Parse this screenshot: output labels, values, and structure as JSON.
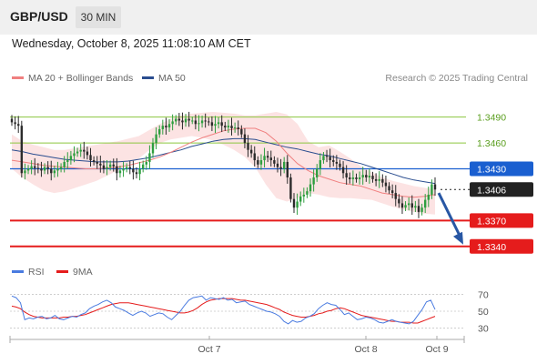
{
  "header": {
    "pair": "GBP/USD",
    "timeframe": "30 MIN"
  },
  "datetime": "Wednesday, October 8, 2025 11:08:10 AM CET",
  "legend": {
    "ma20": "MA 20 + Bollinger Bands",
    "ma50": "MA 50"
  },
  "credit": "Research © 2025 Trading Central",
  "rsi_legend": {
    "rsi": "RSI",
    "ma": "9MA"
  },
  "colors": {
    "ma20": "#f08080",
    "ma50": "#2a4d8f",
    "bull": "#2e9e3f",
    "bear": "#2b2b2b",
    "resistance": "#8cc63f",
    "pivot": "#1a5fd0",
    "support": "#e51c1c",
    "current": "#222222",
    "rsi": "#4a7be0",
    "rsi_ma": "#e51c1c"
  },
  "chart_data": [
    {
      "type": "candlestick",
      "instrument": "GBP/USD",
      "timeframe": "30 MIN",
      "ylim": [
        1.3325,
        1.3515
      ],
      "xlabels": [
        "Oct 7",
        "Oct 8",
        "Oct 9"
      ],
      "levels": [
        {
          "name": "resistance-2",
          "value": 1.349,
          "label": "1.3490",
          "kind": "resistance"
        },
        {
          "name": "resistance-1",
          "value": 1.346,
          "label": "1.3460",
          "kind": "resistance"
        },
        {
          "name": "pivot",
          "value": 1.343,
          "label": "1.3430",
          "kind": "pivot"
        },
        {
          "name": "current",
          "value": 1.3406,
          "label": "1.3406",
          "kind": "current"
        },
        {
          "name": "support-1",
          "value": 1.337,
          "label": "1.3370",
          "kind": "support"
        },
        {
          "name": "support-2",
          "value": 1.334,
          "label": "1.3340",
          "kind": "support"
        }
      ],
      "closes": [
        1.3484,
        1.3482,
        1.348,
        1.3425,
        1.3428,
        1.343,
        1.3433,
        1.3431,
        1.343,
        1.3428,
        1.3432,
        1.343,
        1.3425,
        1.3428,
        1.343,
        1.3432,
        1.3438,
        1.344,
        1.3445,
        1.3448,
        1.345,
        1.3452,
        1.345,
        1.3446,
        1.344,
        1.3438,
        1.3436,
        1.3434,
        1.343,
        1.3432,
        1.3435,
        1.3433,
        1.3425,
        1.3428,
        1.343,
        1.3432,
        1.343,
        1.3426,
        1.3424,
        1.343,
        1.3435,
        1.3438,
        1.3448,
        1.346,
        1.347,
        1.3476,
        1.348,
        1.3478,
        1.3482,
        1.3485,
        1.3488,
        1.3486,
        1.3484,
        1.3488,
        1.3486,
        1.3486,
        1.3482,
        1.3483,
        1.3486,
        1.3485,
        1.3484,
        1.348,
        1.3482,
        1.3484,
        1.348,
        1.3478,
        1.348,
        1.3477,
        1.3478,
        1.3476,
        1.347,
        1.346,
        1.3452,
        1.3448,
        1.344,
        1.3435,
        1.344,
        1.3445,
        1.3443,
        1.344,
        1.3436,
        1.3432,
        1.343,
        1.3438,
        1.342,
        1.3395,
        1.3385,
        1.3392,
        1.3398,
        1.34,
        1.3404,
        1.3412,
        1.342,
        1.343,
        1.344,
        1.3445,
        1.3444,
        1.344,
        1.3438,
        1.3436,
        1.3432,
        1.3425,
        1.342,
        1.3418,
        1.342,
        1.3418,
        1.342,
        1.3423,
        1.342,
        1.3422,
        1.3418,
        1.3416,
        1.3418,
        1.3414,
        1.341,
        1.3405,
        1.3402,
        1.3395,
        1.339,
        1.3385,
        1.3388,
        1.339,
        1.3385,
        1.3387,
        1.338,
        1.3385,
        1.3394,
        1.34,
        1.3412,
        1.3406
      ],
      "ma20": [
        1.344,
        1.3438,
        1.3436,
        1.3434,
        1.3433,
        1.3432,
        1.3431,
        1.343,
        1.343,
        1.3431,
        1.3432,
        1.3434,
        1.3437,
        1.344,
        1.3444,
        1.3449,
        1.3455,
        1.3461,
        1.3466,
        1.347,
        1.3474,
        1.3476,
        1.3477,
        1.3477,
        1.3472,
        1.3462,
        1.3448,
        1.3436,
        1.3428,
        1.3422,
        1.3418,
        1.3414,
        1.3412,
        1.341,
        1.3406,
        1.3402,
        1.34,
        1.3398,
        1.3397,
        1.3398,
        1.34
      ],
      "ma50": [
        1.3452,
        1.345,
        1.3447,
        1.3445,
        1.3443,
        1.3441,
        1.344,
        1.3439,
        1.3438,
        1.3438,
        1.3438,
        1.3439,
        1.3441,
        1.3443,
        1.3446,
        1.3449,
        1.3452,
        1.3456,
        1.3459,
        1.3462,
        1.3464,
        1.3465,
        1.3465,
        1.3464,
        1.3461,
        1.3458,
        1.3455,
        1.3453,
        1.345,
        1.3447,
        1.3445,
        1.3442,
        1.3439,
        1.3436,
        1.3432,
        1.3428,
        1.3424,
        1.342,
        1.3417,
        1.3415,
        1.3413
      ],
      "bb_upper": [
        1.347,
        1.3462,
        1.3458,
        1.3455,
        1.3452,
        1.3452,
        1.3454,
        1.3456,
        1.3458,
        1.346,
        1.3462,
        1.3465,
        1.3468,
        1.3475,
        1.3482,
        1.3488,
        1.3492,
        1.3494,
        1.3495,
        1.3496,
        1.3495,
        1.3494,
        1.3492,
        1.3492,
        1.3494,
        1.3496,
        1.3493,
        1.3482,
        1.3462,
        1.3455,
        1.3457,
        1.345,
        1.3442,
        1.3433,
        1.3426,
        1.342,
        1.3416,
        1.3413,
        1.341,
        1.3408,
        1.3406
      ],
      "bb_lower": [
        1.343,
        1.342,
        1.3412,
        1.3405,
        1.3402,
        1.3404,
        1.3408,
        1.3412,
        1.3416,
        1.3422,
        1.3428,
        1.3435,
        1.3442,
        1.3452,
        1.346,
        1.3464,
        1.3466,
        1.3468,
        1.3466,
        1.3463,
        1.3458,
        1.3452,
        1.3444,
        1.3432,
        1.3412,
        1.3396,
        1.3392,
        1.3396,
        1.3402,
        1.34,
        1.3397,
        1.3396,
        1.3396,
        1.3395,
        1.3394,
        1.339,
        1.3386,
        1.3383,
        1.338,
        1.3378,
        1.3377
      ],
      "forecast": {
        "from": 1.3402,
        "to": 1.334
      }
    },
    {
      "type": "line",
      "name": "RSI",
      "ylim": [
        22,
        78
      ],
      "yticks": [
        70,
        50,
        30
      ],
      "series": [
        {
          "name": "RSI",
          "values": [
            68,
            66,
            60,
            40,
            42,
            41,
            43,
            44,
            41,
            42,
            45,
            41,
            40,
            42,
            44,
            43,
            46,
            48,
            53,
            56,
            58,
            61,
            63,
            60,
            55,
            53,
            51,
            48,
            45,
            48,
            50,
            48,
            44,
            46,
            48,
            47,
            43,
            40,
            45,
            50,
            57,
            63,
            66,
            67,
            68,
            63,
            66,
            65,
            64,
            66,
            63,
            64,
            60,
            61,
            62,
            58,
            56,
            54,
            52,
            50,
            49,
            47,
            44,
            38,
            35,
            39,
            37,
            38,
            42,
            44,
            47,
            53,
            57,
            60,
            58,
            57,
            52,
            46,
            48,
            44,
            40,
            41,
            43,
            42,
            40,
            37,
            36,
            38,
            40,
            38,
            37,
            36,
            35,
            38,
            45,
            52,
            61,
            63,
            52
          ]
        },
        {
          "name": "9MA",
          "values": [
            56,
            55,
            53,
            49,
            46,
            44,
            43,
            42,
            42,
            42,
            42,
            42,
            43,
            43,
            44,
            44,
            45,
            46,
            48,
            50,
            52,
            54,
            56,
            58,
            59,
            60,
            60,
            60,
            59,
            58,
            57,
            56,
            55,
            54,
            53,
            52,
            51,
            50,
            49,
            48,
            48,
            49,
            51,
            54,
            58,
            61,
            63,
            64,
            65,
            65,
            65,
            65,
            64,
            63,
            63,
            62,
            61,
            60,
            59,
            58,
            56,
            54,
            52,
            49,
            47,
            45,
            44,
            43,
            43,
            44,
            45,
            47,
            48,
            50,
            51,
            53,
            54,
            53,
            51,
            49,
            47,
            45,
            44,
            43,
            42,
            41,
            40,
            39,
            38,
            38,
            37,
            37,
            37,
            36,
            36,
            38,
            40,
            42,
            44
          ]
        }
      ]
    }
  ]
}
